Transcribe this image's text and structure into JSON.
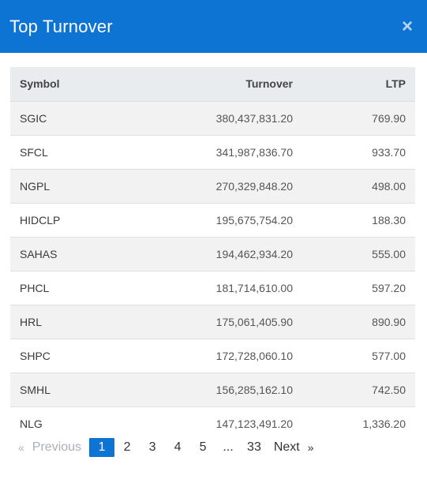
{
  "modal": {
    "title": "Top Turnover",
    "close_icon": "×"
  },
  "table": {
    "headers": {
      "symbol": "Symbol",
      "turnover": "Turnover",
      "ltp": "LTP"
    },
    "rows": [
      {
        "symbol": "SGIC",
        "turnover": "380,437,831.20",
        "ltp": "769.90"
      },
      {
        "symbol": "SFCL",
        "turnover": "341,987,836.70",
        "ltp": "933.70"
      },
      {
        "symbol": "NGPL",
        "turnover": "270,329,848.20",
        "ltp": "498.00"
      },
      {
        "symbol": "HIDCLP",
        "turnover": "195,675,754.20",
        "ltp": "188.30"
      },
      {
        "symbol": "SAHAS",
        "turnover": "194,462,934.20",
        "ltp": "555.00"
      },
      {
        "symbol": "PHCL",
        "turnover": "181,714,610.00",
        "ltp": "597.20"
      },
      {
        "symbol": "HRL",
        "turnover": "175,061,405.90",
        "ltp": "890.90"
      },
      {
        "symbol": "SHPC",
        "turnover": "172,728,060.10",
        "ltp": "577.00"
      },
      {
        "symbol": "SMHL",
        "turnover": "156,285,162.10",
        "ltp": "742.50"
      },
      {
        "symbol": "NLG",
        "turnover": "147,123,491.20",
        "ltp": "1,336.20"
      }
    ]
  },
  "pagination": {
    "prev_chevron": "«",
    "prev_label": "Previous",
    "pages": [
      "1",
      "2",
      "3",
      "4",
      "5",
      "...",
      "33"
    ],
    "active_page": "1",
    "next_label": "Next",
    "next_chevron": "»"
  },
  "colors": {
    "header_bg": "#0d74d4",
    "active_page_bg": "#0d74d4"
  }
}
